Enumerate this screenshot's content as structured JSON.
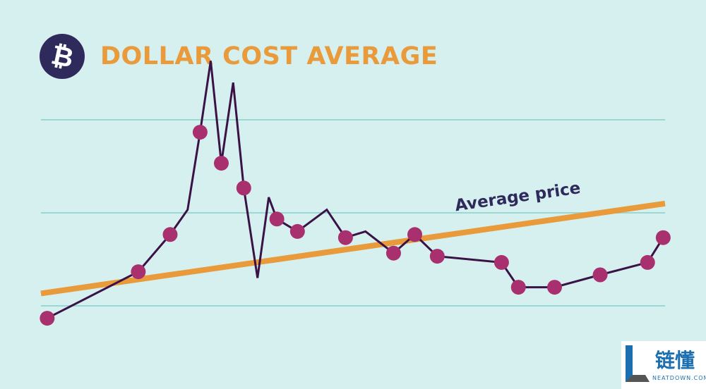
{
  "header": {
    "icon": "bitcoin-icon",
    "icon_glyph": "₿",
    "icon_bg": "#2f2a5c",
    "title": "DOLLAR COST AVERAGE",
    "title_color": "#e99a3a"
  },
  "chart_data": {
    "type": "line",
    "title": "DOLLAR COST AVERAGE",
    "xlabel": "",
    "ylabel": "",
    "ylim": [
      0,
      100
    ],
    "xlim": [
      0,
      100
    ],
    "grid": {
      "horizontal": true,
      "lines_at": [
        20,
        50,
        80
      ]
    },
    "colors": {
      "price": "#3a1246",
      "points": "#a8306e",
      "average": "#e99a3a",
      "grid": "#9ad8d4",
      "background": "#d6f0f0"
    },
    "series": [
      {
        "role": "price",
        "x": [
          1,
          15.6,
          20.7,
          23.5,
          25.5,
          27.2,
          28.9,
          30.8,
          32.5,
          34.7,
          36.5,
          37.8,
          41.1,
          45.8,
          48.8,
          52,
          56.5,
          59.9,
          63.5,
          73.8,
          76.5,
          82.3,
          89.6,
          97.2,
          99.7
        ],
        "y": [
          16,
          31,
          43,
          51,
          76,
          99,
          66,
          92,
          58,
          29,
          55,
          48,
          44,
          51,
          42,
          44,
          37,
          43,
          36,
          34,
          26,
          26,
          30,
          34,
          42
        ],
        "markers": [
          true,
          true,
          true,
          false,
          true,
          false,
          true,
          false,
          true,
          false,
          false,
          true,
          true,
          false,
          true,
          false,
          true,
          true,
          true,
          true,
          true,
          true,
          true,
          true,
          true
        ]
      },
      {
        "role": "average",
        "name": "Average price",
        "x": [
          0,
          100
        ],
        "y": [
          24,
          53
        ]
      }
    ],
    "annotations": [
      {
        "text": "Average price",
        "x": 76.5,
        "y": 53.5
      }
    ]
  },
  "watermark": {
    "text_cn": "链懂",
    "text_en": "NEATDOWN.COM",
    "logo_letter": "L",
    "logo_color": "#1b6fb0"
  }
}
